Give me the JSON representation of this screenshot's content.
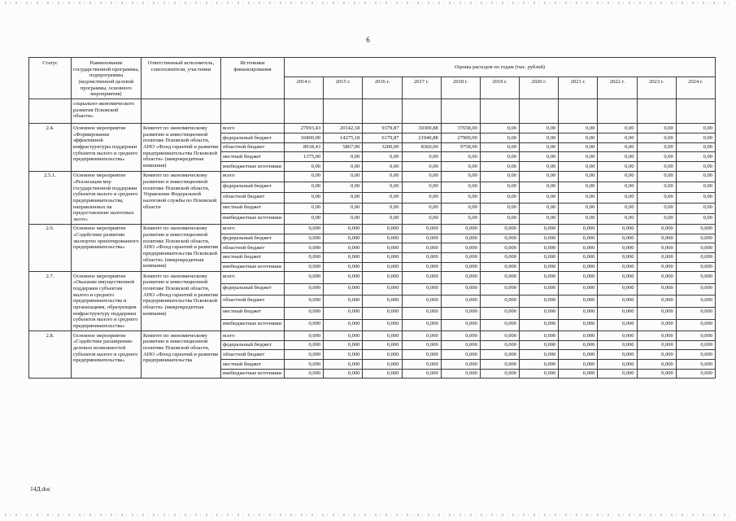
{
  "page": {
    "number": "6",
    "footer": "14Д.doc"
  },
  "table": {
    "col_headers": {
      "status": "Статус",
      "program": "Наименование государственной программы, подпрограммы (ведомственной целевой программы, основного мероприятия)",
      "executor": "Ответственный исполнитель, соисполнители, участники",
      "funding": "Источники финансирования",
      "costs_title": "Оценка расходов по годам (тыс. рублей)",
      "years": [
        "2014 г.",
        "2015 г.",
        "2016 г.",
        "2017 г.",
        "2018 г.",
        "2019 г.",
        "2020 г.",
        "2021 г.",
        "2022 г.",
        "2023 г.",
        "2024 г."
      ]
    },
    "carryover_text": "социально-экономического развития Псковской области»",
    "groups": [
      {
        "status": "2.4.",
        "program": "Основное мероприятие «Формирование эффективной инфраструктуры поддержки субъектов малого и среднего предпринимательства»",
        "executor": "Комитет по экономическому развитию и инвестиционной политике Псковской области,\nАНО «Фонд гарантий и развития предпринимательства Псковской области» (микрокредитная компания)",
        "rows": [
          {
            "source": "всего",
            "values": [
              "27093,43",
              "20142,18",
              "9379,87",
              "30300,88",
              "37658,00",
              "0,00",
              "0,00",
              "0,00",
              "0,00",
              "0,00",
              "0,00"
            ]
          },
          {
            "source": "федеральный бюджет",
            "values": [
              "16800,00",
              "14275,18",
              "6179,87",
              "21940,88",
              "27900,00",
              "0,00",
              "0,00",
              "0,00",
              "0,00",
              "0,00",
              "0,00"
            ]
          },
          {
            "source": "областной бюджет",
            "values": [
              "8918,43",
              "5867,00",
              "3200,00",
              "8360,00",
              "9758,00",
              "0,00",
              "0,00",
              "0,00",
              "0,00",
              "0,00",
              "0,00"
            ]
          },
          {
            "source": "местный бюджет",
            "values": [
              "1375,00",
              "0,00",
              "0,00",
              "0,00",
              "0,00",
              "0,00",
              "0,00",
              "0,00",
              "0,00",
              "0,00",
              "0,00"
            ]
          },
          {
            "source": "внебюджетные источники",
            "values": [
              "0,00",
              "0,00",
              "0,00",
              "0,00",
              "0,00",
              "0,00",
              "0,00",
              "0,00",
              "0,00",
              "0,00",
              "0,00"
            ]
          }
        ]
      },
      {
        "status": "2.5.1.",
        "program": "Основное мероприятие «Реализация мер государственной поддержки субъектов малого и среднего предпринимательства, направленных на предоставление налоговых льгот»",
        "executor": "Комитет по экономическому развитию и инвестиционной политике Псковской области,\nУправление Федеральной налоговой службы по Псковской области",
        "rows": [
          {
            "source": "всего",
            "values": [
              "0,00",
              "0,00",
              "0,00",
              "0,00",
              "0,00",
              "0,00",
              "0,00",
              "0,00",
              "0,00",
              "0,00",
              "0,00"
            ]
          },
          {
            "source": "федеральный бюджет",
            "values": [
              "0,00",
              "0,00",
              "0,00",
              "0,00",
              "0,00",
              "0,00",
              "0,00",
              "0,00",
              "0,00",
              "0,00",
              "0,00"
            ]
          },
          {
            "source": "областной бюджет",
            "values": [
              "0,00",
              "0,00",
              "0,00",
              "0,00",
              "0,00",
              "0,00",
              "0,00",
              "0,00",
              "0,00",
              "0,00",
              "0,00"
            ]
          },
          {
            "source": "местный бюджет",
            "values": [
              "0,00",
              "0,00",
              "0,00",
              "0,00",
              "0,00",
              "0,00",
              "0,00",
              "0,00",
              "0,00",
              "0,00",
              "0,00"
            ]
          },
          {
            "source": "внебюджетные источники",
            "values": [
              "0,00",
              "0,00",
              "0,00",
              "0,00",
              "0,00",
              "0,00",
              "0,00",
              "0,00",
              "0,00",
              "0,00",
              "0,00"
            ]
          }
        ]
      },
      {
        "status": "2.6.",
        "program": "Основное мероприятие «Содействие развитию экспортно ориентированного предпринимательства»",
        "executor": "Комитет по экономическому развитию и инвестиционной политике Псковской области,\nАНО «Фонд гарантий и развития предпринимательства Псковской области» (микрокредитная компания)",
        "rows": [
          {
            "source": "всего",
            "values": [
              "0,000",
              "0,000",
              "0,000",
              "0,000",
              "0,000",
              "0,000",
              "0,000",
              "0,000",
              "0,000",
              "0,000",
              "0,000"
            ]
          },
          {
            "source": "федеральный бюджет",
            "values": [
              "0,000",
              "0,000",
              "0,000",
              "0,000",
              "0,000",
              "0,000",
              "0,000",
              "0,000",
              "0,000",
              "0,000",
              "0,000"
            ]
          },
          {
            "source": "областной бюджет",
            "values": [
              "0,000",
              "0,000",
              "0,000",
              "0,000",
              "0,000",
              "0,000",
              "0,000",
              "0,000",
              "0,000",
              "0,000",
              "0,000"
            ]
          },
          {
            "source": "местный бюджет",
            "values": [
              "0,000",
              "0,000",
              "0,000",
              "0,000",
              "0,000",
              "0,000",
              "0,000",
              "0,000",
              "0,000",
              "0,000",
              "0,000"
            ]
          },
          {
            "source": "внебюджетные источники",
            "values": [
              "0,000",
              "0,000",
              "0,000",
              "0,000",
              "0,000",
              "0,000",
              "0,000",
              "0,000",
              "0,000",
              "0,000",
              "0,000"
            ]
          }
        ]
      },
      {
        "status": "2.7.",
        "program": "Основное мероприятие «Оказание имущественной поддержки субъектам малого и среднего предпринимательства и организациям, образующим инфраструктуру поддержки субъектов малого и среднего предпринимательства»",
        "executor": "Комитет по экономическому развитию и инвестиционной политике Псковской области,\nАНО «Фонд гарантий и развития предпринимательства Псковской области» (микрокредитная компания)",
        "rows": [
          {
            "source": "всего",
            "values": [
              "0,000",
              "0,000",
              "0,000",
              "0,000",
              "0,000",
              "0,000",
              "0,000",
              "0,000",
              "0,000",
              "0,000",
              "0,000"
            ]
          },
          {
            "source": "федеральный бюджет",
            "values": [
              "0,000",
              "0,000",
              "0,000",
              "0,000",
              "0,000",
              "0,000",
              "0,000",
              "0,000",
              "0,000",
              "0,000",
              "0,000"
            ]
          },
          {
            "source": "областной бюджет",
            "values": [
              "0,000",
              "0,000",
              "0,000",
              "0,000",
              "0,000",
              "0,000",
              "0,000",
              "0,000",
              "0,000",
              "0,000",
              "0,000"
            ]
          },
          {
            "source": "местный бюджет",
            "values": [
              "0,000",
              "0,000",
              "0,000",
              "0,000",
              "0,000",
              "0,000",
              "0,000",
              "0,000",
              "0,000",
              "0,000",
              "0,000"
            ]
          },
          {
            "source": "внебюджетные источники",
            "values": [
              "0,000",
              "0,000",
              "0,000",
              "0,000",
              "0,000",
              "0,000",
              "0,000",
              "0,000",
              "0,000",
              "0,000",
              "0,000"
            ]
          }
        ]
      },
      {
        "status": "2.8.",
        "program": "Основное мероприятие «Содействие расширению деловых возможностей субъектов малого и среднего предпринимательства»",
        "executor": "Комитет по экономическому развитию и инвестиционной политике Псковской области,\nАНО «Фонд гарантий и развития предпринимательства",
        "rows": [
          {
            "source": "всего",
            "values": [
              "0,000",
              "0,000",
              "0,000",
              "0,000",
              "0,000",
              "0,000",
              "0,000",
              "0,000",
              "0,000",
              "0,000",
              "0,000"
            ]
          },
          {
            "source": "федеральный бюджет",
            "values": [
              "0,000",
              "0,000",
              "0,000",
              "0,000",
              "0,000",
              "0,000",
              "0,000",
              "0,000",
              "0,000",
              "0,000",
              "0,000"
            ]
          },
          {
            "source": "областной бюджет",
            "values": [
              "0,000",
              "0,000",
              "0,000",
              "0,000",
              "0,000",
              "0,000",
              "0,000",
              "0,000",
              "0,000",
              "0,000",
              "0,000"
            ]
          },
          {
            "source": "местный бюджет",
            "values": [
              "0,000",
              "0,000",
              "0,000",
              "0,000",
              "0,000",
              "0,000",
              "0,000",
              "0,000",
              "0,000",
              "0,000",
              "0,000"
            ]
          },
          {
            "source": "внебюджетные источники",
            "values": [
              "0,000",
              "0,000",
              "0,000",
              "0,000",
              "0,000",
              "0,000",
              "0,000",
              "0,000",
              "0,000",
              "0,000",
              "0,000"
            ]
          }
        ]
      }
    ]
  }
}
